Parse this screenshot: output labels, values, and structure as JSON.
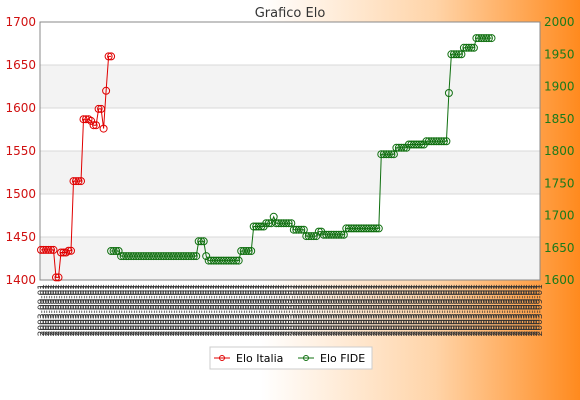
{
  "chart_data": {
    "type": "line",
    "title": "Grafico Elo",
    "x_tick_label": "2003-09-01",
    "x_count": 200,
    "y_left": {
      "min": 1400,
      "max": 1700,
      "ticks": [
        1400,
        1450,
        1500,
        1550,
        1600,
        1650,
        1700
      ],
      "color": "#e00000"
    },
    "y_right": {
      "min": 1600,
      "max": 2000,
      "ticks": [
        1600,
        1650,
        1700,
        1750,
        1800,
        1850,
        1900,
        1950,
        2000
      ],
      "color": "#107010"
    },
    "grid": true,
    "legend": "bottom-center",
    "series": [
      {
        "name": "Elo Italia",
        "axis": "left",
        "color": "#e00000",
        "start_index": 0,
        "values": [
          1435,
          1435,
          1435,
          1435,
          1435,
          1435,
          1403,
          1403,
          1432,
          1432,
          1432,
          1434,
          1434,
          1515,
          1515,
          1515,
          1515,
          1587,
          1587,
          1587,
          1585,
          1580,
          1580,
          1599,
          1599,
          1576,
          1620,
          1660,
          1660
        ]
      },
      {
        "name": "Elo FIDE",
        "axis": "right",
        "color": "#107010",
        "start_index": 28,
        "values": [
          1645,
          1645,
          1645,
          1645,
          1637,
          1637,
          1637,
          1637,
          1637,
          1637,
          1637,
          1637,
          1637,
          1637,
          1637,
          1637,
          1637,
          1637,
          1637,
          1637,
          1637,
          1637,
          1637,
          1637,
          1637,
          1637,
          1637,
          1637,
          1637,
          1637,
          1637,
          1637,
          1637,
          1637,
          1637,
          1660,
          1660,
          1660,
          1637,
          1630,
          1630,
          1630,
          1630,
          1630,
          1630,
          1630,
          1630,
          1630,
          1630,
          1630,
          1630,
          1630,
          1645,
          1645,
          1645,
          1645,
          1645,
          1683,
          1683,
          1683,
          1683,
          1683,
          1688,
          1688,
          1688,
          1698,
          1688,
          1688,
          1688,
          1688,
          1688,
          1688,
          1688,
          1678,
          1678,
          1678,
          1678,
          1678,
          1668,
          1668,
          1668,
          1668,
          1668,
          1675,
          1675,
          1670,
          1670,
          1670,
          1670,
          1670,
          1670,
          1670,
          1670,
          1670,
          1680,
          1680,
          1680,
          1680,
          1680,
          1680,
          1680,
          1680,
          1680,
          1680,
          1680,
          1680,
          1680,
          1680,
          1795,
          1795,
          1795,
          1795,
          1795,
          1795,
          1805,
          1805,
          1805,
          1805,
          1805,
          1810,
          1810,
          1810,
          1810,
          1810,
          1810,
          1810,
          1815,
          1815,
          1815,
          1815,
          1815,
          1815,
          1815,
          1815,
          1815,
          1890,
          1950,
          1950,
          1950,
          1950,
          1950,
          1960,
          1960,
          1960,
          1960,
          1960,
          1975,
          1975,
          1975,
          1975,
          1975,
          1975,
          1975
        ]
      }
    ]
  }
}
